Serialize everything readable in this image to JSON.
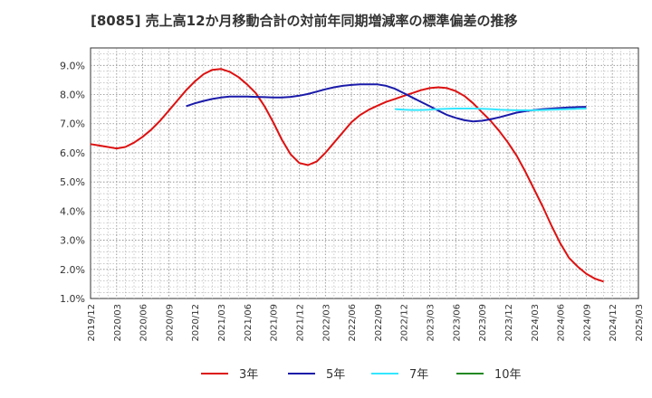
{
  "chart_data": {
    "type": "line",
    "title": "[8085]  売上高12か月移動合計の対前年同期増減率の標準偏差の推移",
    "xlabel": "",
    "ylabel": "",
    "x_ticks": [
      "2019/12",
      "2020/03",
      "2020/06",
      "2020/09",
      "2020/12",
      "2021/03",
      "2021/06",
      "2021/09",
      "2021/12",
      "2022/03",
      "2022/06",
      "2022/09",
      "2022/12",
      "2023/03",
      "2023/06",
      "2023/09",
      "2023/12",
      "2024/03",
      "2024/06",
      "2024/09",
      "2024/12",
      "2025/03"
    ],
    "y_ticks": [
      "1.0%",
      "2.0%",
      "3.0%",
      "4.0%",
      "5.0%",
      "6.0%",
      "7.0%",
      "8.0%",
      "9.0%"
    ],
    "ylim": [
      1.0,
      9.6
    ],
    "grid": true,
    "legend_position": "bottom",
    "series": [
      {
        "name": "3年",
        "color": "#dd1111",
        "points": [
          [
            "2019/12",
            6.3
          ],
          [
            "2020/01",
            6.25
          ],
          [
            "2020/02",
            6.2
          ],
          [
            "2020/03",
            6.15
          ],
          [
            "2020/04",
            6.2
          ],
          [
            "2020/05",
            6.35
          ],
          [
            "2020/06",
            6.55
          ],
          [
            "2020/07",
            6.8
          ],
          [
            "2020/08",
            7.1
          ],
          [
            "2020/09",
            7.45
          ],
          [
            "2020/10",
            7.8
          ],
          [
            "2020/11",
            8.15
          ],
          [
            "2020/12",
            8.45
          ],
          [
            "2021/01",
            8.7
          ],
          [
            "2021/02",
            8.85
          ],
          [
            "2021/03",
            8.88
          ],
          [
            "2021/04",
            8.78
          ],
          [
            "2021/05",
            8.6
          ],
          [
            "2021/06",
            8.35
          ],
          [
            "2021/07",
            8.05
          ],
          [
            "2021/08",
            7.6
          ],
          [
            "2021/09",
            7.05
          ],
          [
            "2021/10",
            6.45
          ],
          [
            "2021/11",
            5.95
          ],
          [
            "2021/12",
            5.65
          ],
          [
            "2022/01",
            5.58
          ],
          [
            "2022/02",
            5.7
          ],
          [
            "2022/03",
            6.0
          ],
          [
            "2022/04",
            6.35
          ],
          [
            "2022/05",
            6.7
          ],
          [
            "2022/06",
            7.05
          ],
          [
            "2022/07",
            7.3
          ],
          [
            "2022/08",
            7.48
          ],
          [
            "2022/09",
            7.62
          ],
          [
            "2022/10",
            7.75
          ],
          [
            "2022/11",
            7.85
          ],
          [
            "2022/12",
            7.95
          ],
          [
            "2023/01",
            8.05
          ],
          [
            "2023/02",
            8.15
          ],
          [
            "2023/03",
            8.22
          ],
          [
            "2023/04",
            8.25
          ],
          [
            "2023/05",
            8.22
          ],
          [
            "2023/06",
            8.12
          ],
          [
            "2023/07",
            7.95
          ],
          [
            "2023/08",
            7.7
          ],
          [
            "2023/09",
            7.4
          ],
          [
            "2023/10",
            7.1
          ],
          [
            "2023/11",
            6.75
          ],
          [
            "2023/12",
            6.35
          ],
          [
            "2024/01",
            5.9
          ],
          [
            "2024/02",
            5.35
          ],
          [
            "2024/03",
            4.75
          ],
          [
            "2024/04",
            4.15
          ],
          [
            "2024/05",
            3.5
          ],
          [
            "2024/06",
            2.9
          ],
          [
            "2024/07",
            2.4
          ],
          [
            "2024/08",
            2.1
          ],
          [
            "2024/09",
            1.85
          ],
          [
            "2024/10",
            1.68
          ],
          [
            "2024/11",
            1.58
          ]
        ]
      },
      {
        "name": "5年",
        "color": "#1a1aaa",
        "points": [
          [
            "2020/11",
            7.6
          ],
          [
            "2020/12",
            7.7
          ],
          [
            "2021/01",
            7.78
          ],
          [
            "2021/02",
            7.85
          ],
          [
            "2021/03",
            7.9
          ],
          [
            "2021/04",
            7.93
          ],
          [
            "2021/05",
            7.93
          ],
          [
            "2021/06",
            7.93
          ],
          [
            "2021/07",
            7.92
          ],
          [
            "2021/08",
            7.91
          ],
          [
            "2021/09",
            7.9
          ],
          [
            "2021/10",
            7.9
          ],
          [
            "2021/11",
            7.92
          ],
          [
            "2021/12",
            7.96
          ],
          [
            "2022/01",
            8.02
          ],
          [
            "2022/02",
            8.1
          ],
          [
            "2022/03",
            8.18
          ],
          [
            "2022/04",
            8.25
          ],
          [
            "2022/05",
            8.3
          ],
          [
            "2022/06",
            8.33
          ],
          [
            "2022/07",
            8.35
          ],
          [
            "2022/08",
            8.35
          ],
          [
            "2022/09",
            8.35
          ],
          [
            "2022/10",
            8.3
          ],
          [
            "2022/11",
            8.2
          ],
          [
            "2022/12",
            8.05
          ],
          [
            "2023/01",
            7.9
          ],
          [
            "2023/02",
            7.75
          ],
          [
            "2023/03",
            7.6
          ],
          [
            "2023/04",
            7.45
          ],
          [
            "2023/05",
            7.3
          ],
          [
            "2023/06",
            7.2
          ],
          [
            "2023/07",
            7.12
          ],
          [
            "2023/08",
            7.08
          ],
          [
            "2023/09",
            7.1
          ],
          [
            "2023/10",
            7.15
          ],
          [
            "2023/11",
            7.22
          ],
          [
            "2023/12",
            7.3
          ],
          [
            "2024/01",
            7.38
          ],
          [
            "2024/02",
            7.43
          ],
          [
            "2024/03",
            7.47
          ],
          [
            "2024/04",
            7.5
          ],
          [
            "2024/05",
            7.52
          ],
          [
            "2024/06",
            7.54
          ],
          [
            "2024/07",
            7.56
          ],
          [
            "2024/08",
            7.57
          ],
          [
            "2024/09",
            7.58
          ]
        ]
      },
      {
        "name": "7年",
        "color": "#33e6ff",
        "points": [
          [
            "2022/11",
            7.5
          ],
          [
            "2022/12",
            7.48
          ],
          [
            "2023/01",
            7.47
          ],
          [
            "2023/02",
            7.47
          ],
          [
            "2023/03",
            7.48
          ],
          [
            "2023/04",
            7.5
          ],
          [
            "2023/05",
            7.51
          ],
          [
            "2023/06",
            7.52
          ],
          [
            "2023/07",
            7.52
          ],
          [
            "2023/08",
            7.52
          ],
          [
            "2023/09",
            7.51
          ],
          [
            "2023/10",
            7.5
          ],
          [
            "2023/11",
            7.48
          ],
          [
            "2023/12",
            7.47
          ],
          [
            "2024/01",
            7.46
          ],
          [
            "2024/02",
            7.46
          ],
          [
            "2024/03",
            7.46
          ],
          [
            "2024/04",
            7.47
          ],
          [
            "2024/05",
            7.48
          ],
          [
            "2024/06",
            7.49
          ],
          [
            "2024/07",
            7.5
          ],
          [
            "2024/08",
            7.51
          ],
          [
            "2024/09",
            7.52
          ]
        ]
      },
      {
        "name": "10年",
        "color": "#228822",
        "points": []
      }
    ]
  }
}
